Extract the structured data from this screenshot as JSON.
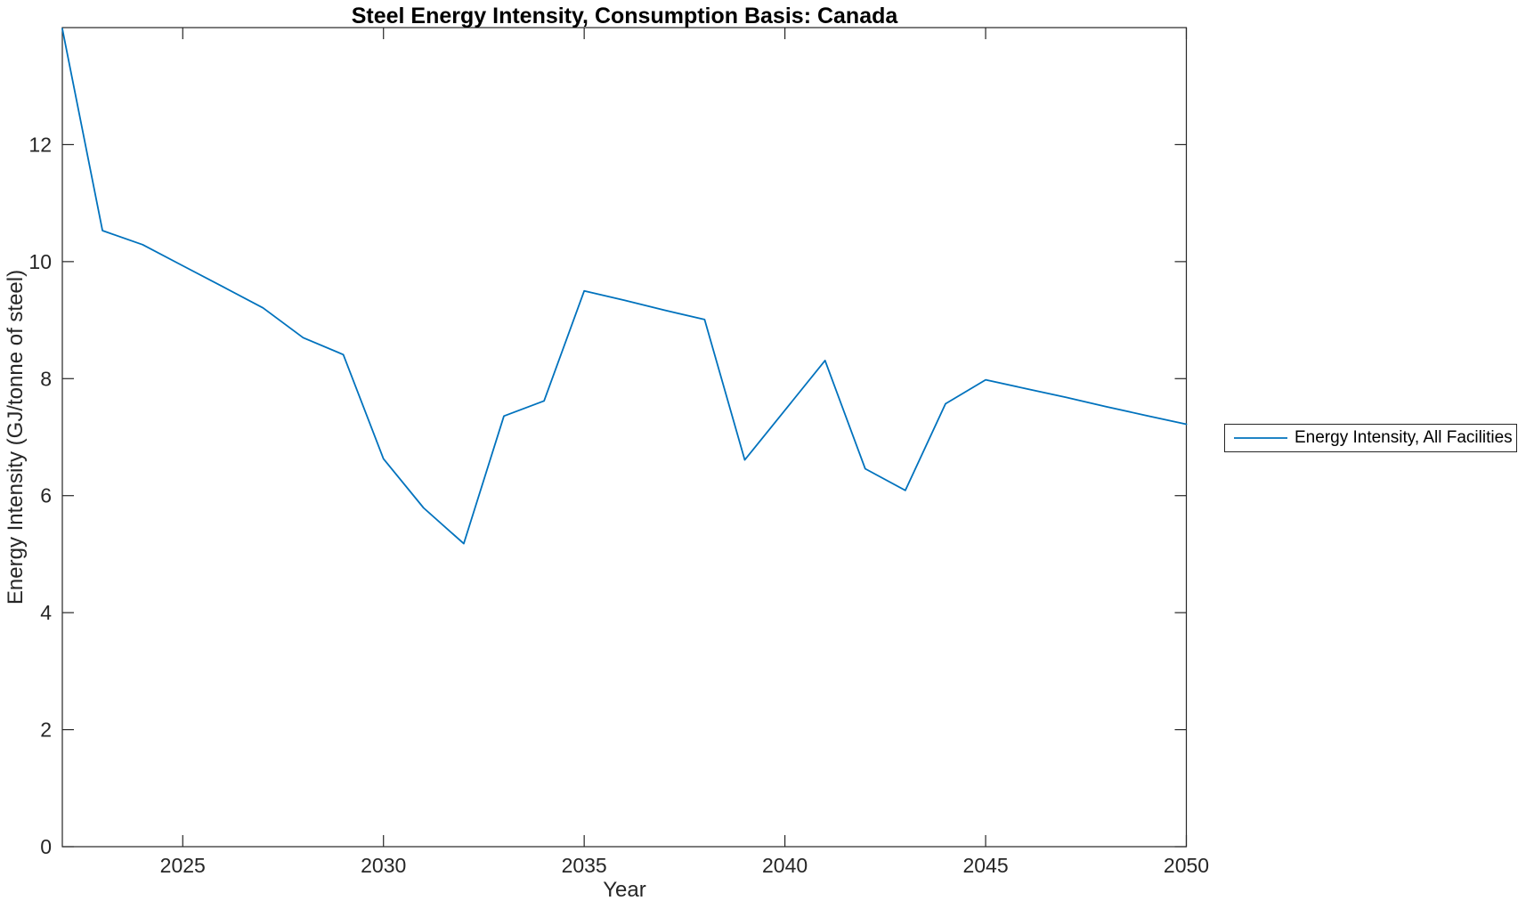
{
  "chart_data": {
    "type": "line",
    "title": "Steel Energy Intensity, Consumption Basis: Canada",
    "xlabel": "Year",
    "ylabel": "Energy Intensity (GJ/tonne of steel)",
    "x": [
      2022,
      2023,
      2024,
      2025,
      2026,
      2027,
      2028,
      2029,
      2030,
      2031,
      2032,
      2033,
      2034,
      2035,
      2036,
      2037,
      2038,
      2039,
      2040,
      2041,
      2042,
      2043,
      2044,
      2045,
      2046,
      2047,
      2048,
      2049,
      2050
    ],
    "series": [
      {
        "name": "Energy Intensity, All Facilities",
        "color": "#0072BD",
        "values": [
          13.98,
          10.53,
          10.29,
          9.93,
          9.57,
          9.21,
          8.7,
          8.41,
          6.63,
          5.79,
          5.18,
          7.36,
          7.62,
          9.5,
          9.34,
          9.17,
          9.01,
          6.61,
          7.46,
          8.31,
          6.46,
          6.09,
          7.57,
          7.98,
          7.83,
          7.68,
          7.52,
          7.37,
          7.22
        ]
      }
    ],
    "xlim": [
      2022,
      2050
    ],
    "ylim": [
      0,
      14
    ],
    "xticks": [
      2025,
      2030,
      2035,
      2040,
      2045,
      2050
    ],
    "yticks": [
      0,
      2,
      4,
      6,
      8,
      10,
      12
    ],
    "grid": false,
    "legend_position": "outside-right",
    "axis_color": "#262626",
    "background_color": "#ffffff"
  }
}
